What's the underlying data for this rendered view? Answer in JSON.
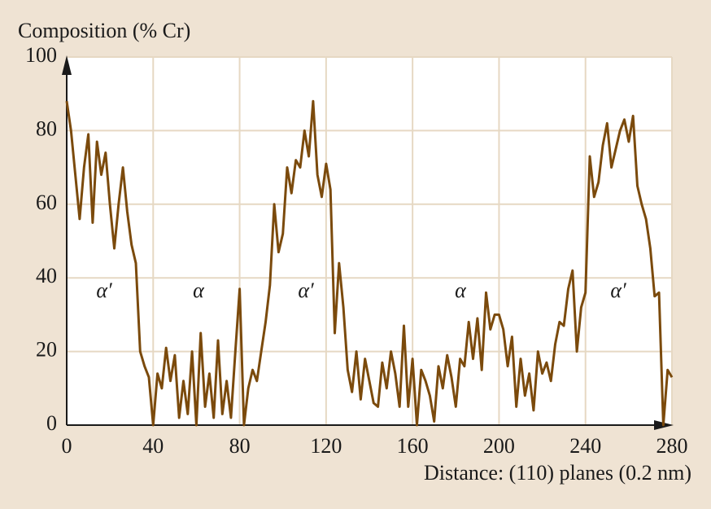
{
  "chart_data": {
    "type": "line",
    "title": "Composition (% Cr)",
    "x_label": "Distance: (110) planes (0.2 nm)",
    "x": [
      0,
      2,
      4,
      6,
      8,
      10,
      12,
      14,
      16,
      18,
      20,
      22,
      24,
      26,
      28,
      30,
      32,
      34,
      36,
      38,
      40,
      42,
      44,
      46,
      48,
      50,
      52,
      54,
      56,
      58,
      60,
      62,
      64,
      66,
      68,
      70,
      72,
      74,
      76,
      78,
      80,
      82,
      84,
      86,
      88,
      90,
      92,
      94,
      96,
      98,
      100,
      102,
      104,
      106,
      108,
      110,
      112,
      114,
      116,
      118,
      120,
      122,
      124,
      126,
      128,
      130,
      132,
      134,
      136,
      138,
      140,
      142,
      144,
      146,
      148,
      150,
      152,
      154,
      156,
      158,
      160,
      162,
      164,
      166,
      168,
      170,
      172,
      174,
      176,
      178,
      180,
      182,
      184,
      186,
      188,
      190,
      192,
      194,
      196,
      198,
      200,
      202,
      204,
      206,
      208,
      210,
      212,
      214,
      216,
      218,
      220,
      222,
      224,
      226,
      228,
      230,
      232,
      234,
      236,
      238,
      240,
      242,
      244,
      246,
      248,
      250,
      252,
      254,
      256,
      258,
      260,
      262,
      264,
      266,
      268,
      270,
      272,
      274,
      276,
      278,
      280
    ],
    "values": [
      88,
      80,
      68,
      56,
      70,
      79,
      55,
      77,
      68,
      74,
      60,
      48,
      60,
      70,
      58,
      49,
      44,
      20,
      16,
      13,
      0,
      14,
      10,
      21,
      12,
      19,
      2,
      12,
      3,
      20,
      0,
      25,
      5,
      14,
      2,
      23,
      3,
      12,
      2,
      20,
      37,
      0,
      10,
      15,
      12,
      20,
      28,
      38,
      60,
      47,
      52,
      70,
      63,
      72,
      70,
      80,
      73,
      88,
      68,
      62,
      71,
      64,
      25,
      44,
      32,
      15,
      9,
      20,
      7,
      18,
      12,
      6,
      5,
      17,
      10,
      20,
      14,
      5,
      27,
      5,
      18,
      0,
      15,
      12,
      8,
      1,
      16,
      10,
      19,
      13,
      5,
      18,
      16,
      28,
      18,
      29,
      15,
      36,
      26,
      30,
      30,
      26,
      16,
      24,
      5,
      18,
      8,
      14,
      4,
      20,
      14,
      17,
      12,
      22,
      28,
      27,
      37,
      42,
      20,
      32,
      36,
      73,
      62,
      66,
      76,
      82,
      70,
      75,
      80,
      83,
      77,
      84,
      65,
      60,
      56,
      48,
      35,
      36,
      0,
      15,
      13
    ],
    "color": "#7b4a0c",
    "annotations": [
      "α′",
      "α",
      "α′",
      "α",
      "α′"
    ],
    "xlim": [
      0,
      280
    ],
    "ylim": [
      0,
      100
    ],
    "xticks": [
      0,
      40,
      80,
      120,
      160,
      200,
      240,
      280
    ],
    "yticks": [
      0,
      20,
      40,
      60,
      80,
      100
    ],
    "grid": true
  }
}
